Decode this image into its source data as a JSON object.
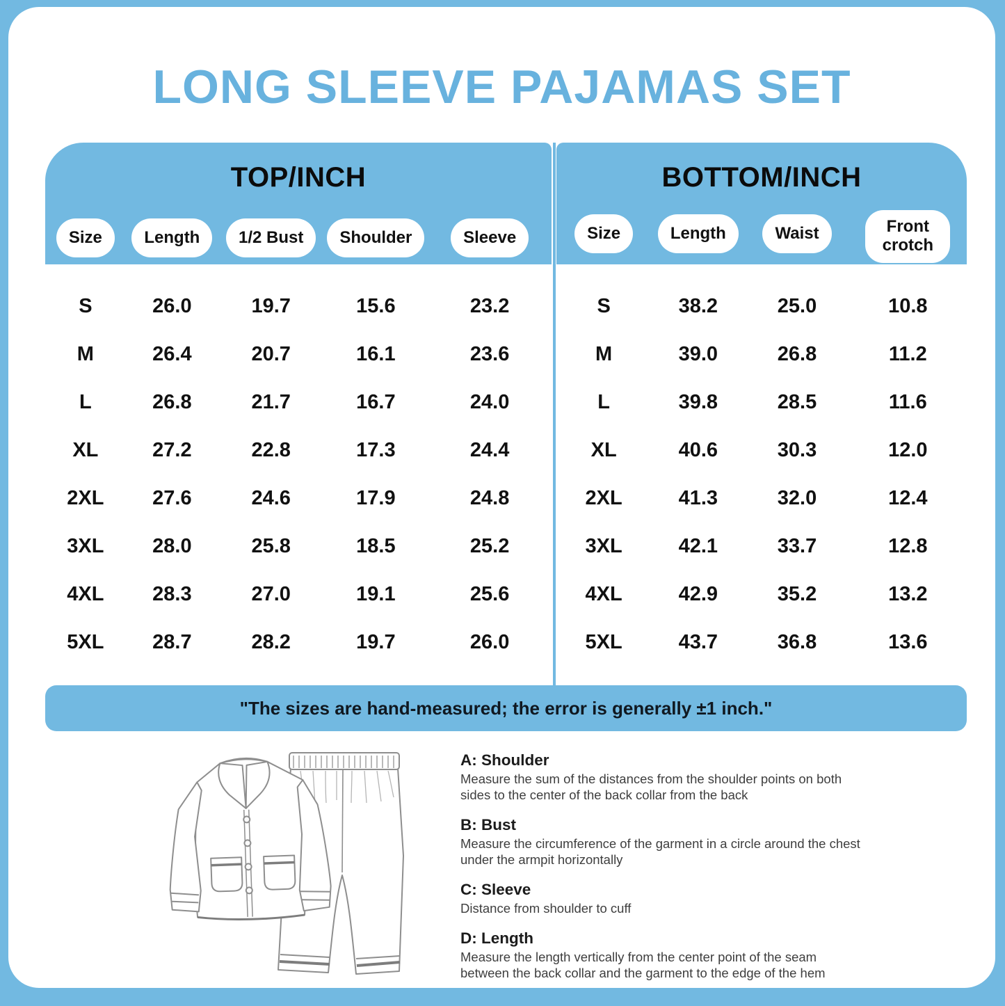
{
  "page_title": "LONG SLEEVE PAJAMAS SET",
  "colors": {
    "accent": "#72b9e1",
    "title_blue": "#68b2de"
  },
  "chart_data": [
    {
      "type": "table",
      "title": "TOP/INCH",
      "columns": [
        "Size",
        "Length",
        "1/2 Bust",
        "Shoulder",
        "Sleeve"
      ],
      "rows": [
        {
          "size": "S",
          "values": [
            "26.0",
            "19.7",
            "15.6",
            "23.2"
          ]
        },
        {
          "size": "M",
          "values": [
            "26.4",
            "20.7",
            "16.1",
            "23.6"
          ]
        },
        {
          "size": "L",
          "values": [
            "26.8",
            "21.7",
            "16.7",
            "24.0"
          ]
        },
        {
          "size": "XL",
          "values": [
            "27.2",
            "22.8",
            "17.3",
            "24.4"
          ]
        },
        {
          "size": "2XL",
          "values": [
            "27.6",
            "24.6",
            "17.9",
            "24.8"
          ]
        },
        {
          "size": "3XL",
          "values": [
            "28.0",
            "25.8",
            "18.5",
            "25.2"
          ]
        },
        {
          "size": "4XL",
          "values": [
            "28.3",
            "27.0",
            "19.1",
            "25.6"
          ]
        },
        {
          "size": "5XL",
          "values": [
            "28.7",
            "28.2",
            "19.7",
            "26.0"
          ]
        }
      ]
    },
    {
      "type": "table",
      "title": "BOTTOM/INCH",
      "columns": [
        "Size",
        "Length",
        "Waist",
        "Front crotch"
      ],
      "rows": [
        {
          "size": "S",
          "values": [
            "38.2",
            "25.0",
            "10.8"
          ]
        },
        {
          "size": "M",
          "values": [
            "39.0",
            "26.8",
            "11.2"
          ]
        },
        {
          "size": "L",
          "values": [
            "39.8",
            "28.5",
            "11.6"
          ]
        },
        {
          "size": "XL",
          "values": [
            "40.6",
            "30.3",
            "12.0"
          ]
        },
        {
          "size": "2XL",
          "values": [
            "41.3",
            "32.0",
            "12.4"
          ]
        },
        {
          "size": "3XL",
          "values": [
            "42.1",
            "33.7",
            "12.8"
          ]
        },
        {
          "size": "4XL",
          "values": [
            "42.9",
            "35.2",
            "13.2"
          ]
        },
        {
          "size": "5XL",
          "values": [
            "43.7",
            "36.8",
            "13.6"
          ]
        }
      ]
    }
  ],
  "note": "\"The sizes are hand-measured; the error is generally ±1 inch.\"",
  "measure_guide": [
    {
      "heading": "A: Shoulder",
      "body": "Measure the sum of the distances from the shoulder points on both sides to the center of the back collar from the back"
    },
    {
      "heading": "B: Bust",
      "body": "Measure the circumference of the garment in a circle around the chest under the armpit horizontally"
    },
    {
      "heading": "C: Sleeve",
      "body": "Distance from shoulder to cuff"
    },
    {
      "heading": "D: Length",
      "body": "Measure the length vertically from the center point of the seam between the back collar and the garment to the edge of the hem"
    }
  ],
  "illustration": {
    "name": "pajama-set-line-art"
  }
}
